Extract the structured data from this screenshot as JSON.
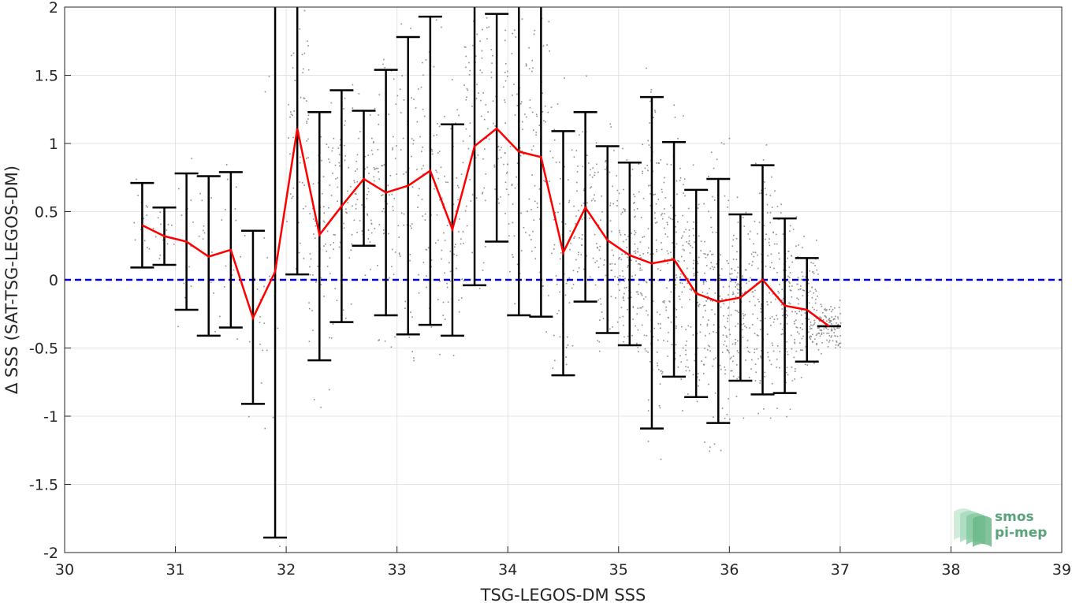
{
  "chart_data": {
    "type": "scatter",
    "xlabel": "TSG-LEGOS-DM SSS",
    "ylabel": "Δ SSS (SAT-TSG-LEGOS-DM)",
    "xlim": [
      30,
      39
    ],
    "ylim": [
      -2,
      2
    ],
    "xticks": [
      "30",
      "31",
      "32",
      "33",
      "34",
      "35",
      "36",
      "37",
      "38",
      "39"
    ],
    "yticks": [
      "-2",
      "-1.5",
      "-1",
      "-0.5",
      "0",
      "0.5",
      "1",
      "1.5",
      "2"
    ],
    "grid": true,
    "zero_line": {
      "y": 0,
      "color": "#0000cc",
      "style": "dashed"
    },
    "mean_line_color": "#ff0000",
    "errorbar_color": "#000000",
    "scatter_color": "#8c8c8c",
    "binned": [
      {
        "x": 30.7,
        "mean": 0.4,
        "low": 0.09,
        "high": 0.71
      },
      {
        "x": 30.9,
        "mean": 0.32,
        "low": 0.11,
        "high": 0.53
      },
      {
        "x": 31.1,
        "mean": 0.28,
        "low": -0.22,
        "high": 0.78
      },
      {
        "x": 31.3,
        "mean": 0.17,
        "low": -0.41,
        "high": 0.76
      },
      {
        "x": 31.5,
        "mean": 0.22,
        "low": -0.35,
        "high": 0.79
      },
      {
        "x": 31.7,
        "mean": -0.28,
        "low": -0.91,
        "high": 0.36
      },
      {
        "x": 31.9,
        "mean": 0.06,
        "low": -1.89,
        "high": 2.0
      },
      {
        "x": 32.1,
        "mean": 1.11,
        "low": 0.04,
        "high": 2.0
      },
      {
        "x": 32.3,
        "mean": 0.33,
        "low": -0.59,
        "high": 1.23
      },
      {
        "x": 32.5,
        "mean": 0.54,
        "low": -0.31,
        "high": 1.39
      },
      {
        "x": 32.7,
        "mean": 0.74,
        "low": 0.25,
        "high": 1.24
      },
      {
        "x": 32.9,
        "mean": 0.64,
        "low": -0.26,
        "high": 1.54
      },
      {
        "x": 33.1,
        "mean": 0.69,
        "low": -0.4,
        "high": 1.78
      },
      {
        "x": 33.3,
        "mean": 0.8,
        "low": -0.33,
        "high": 1.93
      },
      {
        "x": 33.5,
        "mean": 0.37,
        "low": -0.41,
        "high": 1.14
      },
      {
        "x": 33.7,
        "mean": 0.98,
        "low": -0.04,
        "high": 2.0
      },
      {
        "x": 33.9,
        "mean": 1.11,
        "low": 0.28,
        "high": 1.95
      },
      {
        "x": 34.1,
        "mean": 0.94,
        "low": -0.26,
        "high": 2.0
      },
      {
        "x": 34.3,
        "mean": 0.9,
        "low": -0.27,
        "high": 2.0
      },
      {
        "x": 34.5,
        "mean": 0.2,
        "low": -0.7,
        "high": 1.09
      },
      {
        "x": 34.7,
        "mean": 0.53,
        "low": -0.16,
        "high": 1.23
      },
      {
        "x": 34.9,
        "mean": 0.29,
        "low": -0.39,
        "high": 0.98
      },
      {
        "x": 35.1,
        "mean": 0.18,
        "low": -0.48,
        "high": 0.86
      },
      {
        "x": 35.3,
        "mean": 0.12,
        "low": -1.09,
        "high": 1.34
      },
      {
        "x": 35.5,
        "mean": 0.15,
        "low": -0.71,
        "high": 1.01
      },
      {
        "x": 35.7,
        "mean": -0.1,
        "low": -0.86,
        "high": 0.66
      },
      {
        "x": 35.9,
        "mean": -0.16,
        "low": -1.05,
        "high": 0.74
      },
      {
        "x": 36.1,
        "mean": -0.13,
        "low": -0.74,
        "high": 0.48
      },
      {
        "x": 36.3,
        "mean": 0.0,
        "low": -0.84,
        "high": 0.84
      },
      {
        "x": 36.5,
        "mean": -0.19,
        "low": -0.83,
        "high": 0.45
      },
      {
        "x": 36.7,
        "mean": -0.22,
        "low": -0.6,
        "high": 0.16
      },
      {
        "x": 36.9,
        "mean": -0.34,
        "low": -0.34,
        "high": -0.34
      }
    ]
  },
  "logo": {
    "line1": "smos",
    "line2": "pi-mep"
  }
}
